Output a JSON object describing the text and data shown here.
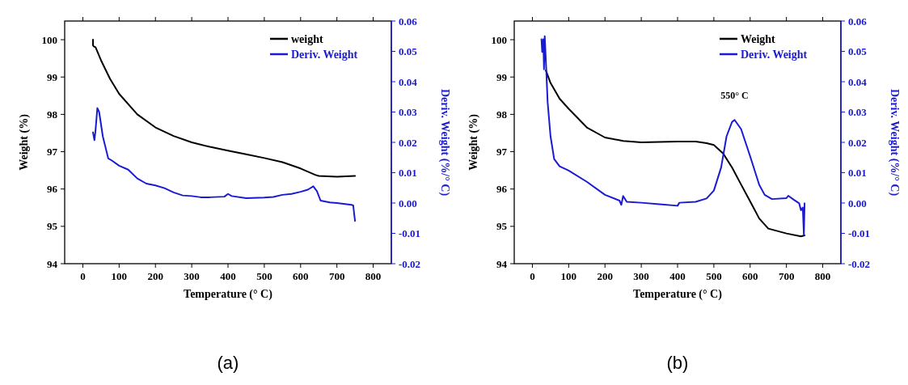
{
  "chart_data": [
    {
      "type": "line",
      "xlabel": "Temperature (° C)",
      "ylabel": "Weight (%)",
      "y2label": "Deriv. Weight (%/° C)",
      "xlim": [
        -50,
        850
      ],
      "xticks": [
        0,
        100,
        200,
        300,
        400,
        500,
        600,
        700,
        800
      ],
      "ylim": [
        94,
        100.5
      ],
      "yticks": [
        94,
        95,
        96,
        97,
        98,
        99,
        100
      ],
      "y2lim": [
        -0.02,
        0.06
      ],
      "y2ticks": [
        -0.02,
        -0.01,
        {
          "value": 0,
          "label": "0.00"
        },
        0.01,
        0.02,
        0.03,
        0.04,
        0.05,
        0.06
      ],
      "legend": "top right",
      "grid": false,
      "annotations": [
        "(a)"
      ],
      "series": [
        {
          "name": "weight",
          "color": "#000000",
          "x": [
            28,
            28,
            30,
            35,
            50,
            75,
            100,
            150,
            200,
            250,
            300,
            350,
            400,
            450,
            500,
            550,
            600,
            640,
            650,
            700,
            750
          ],
          "values": [
            100.0,
            99.85,
            99.82,
            99.8,
            99.45,
            98.95,
            98.55,
            98.0,
            97.65,
            97.42,
            97.25,
            97.13,
            97.03,
            96.93,
            96.83,
            96.72,
            96.55,
            96.38,
            96.35,
            96.33,
            96.35
          ]
        },
        {
          "name": "Deriv. Weight",
          "color": "#1a1ad2",
          "axis": "y2",
          "x": [
            28,
            30,
            32,
            35,
            40,
            45,
            55,
            70,
            80,
            100,
            125,
            150,
            175,
            200,
            225,
            250,
            275,
            300,
            325,
            350,
            390,
            400,
            410,
            450,
            500,
            525,
            550,
            575,
            600,
            620,
            635,
            645,
            655,
            680,
            700,
            740,
            745,
            748,
            750
          ],
          "values": [
            0.0233,
            0.022,
            0.0207,
            0.024,
            0.0313,
            0.03,
            0.022,
            0.0147,
            0.014,
            0.0123,
            0.011,
            0.0081,
            0.0064,
            0.0058,
            0.0049,
            0.0035,
            0.0025,
            0.0023,
            0.0019,
            0.0019,
            0.0021,
            0.003,
            0.0023,
            0.0016,
            0.0018,
            0.002,
            0.0027,
            0.003,
            0.0037,
            0.0044,
            0.0055,
            0.0039,
            0.0008,
            0.0002,
            0.0,
            -0.0006,
            -0.0008,
            -0.004,
            -0.0059
          ]
        }
      ]
    },
    {
      "type": "line",
      "xlabel": "Temperature (° C)",
      "ylabel": "Weight (%)",
      "y2label": "Deriv. Weight (%/° C)",
      "xlim": [
        -50,
        850
      ],
      "xticks": [
        0,
        100,
        200,
        300,
        400,
        500,
        600,
        700,
        800
      ],
      "ylim": [
        94,
        100.5
      ],
      "yticks": [
        94,
        95,
        96,
        97,
        98,
        99,
        100
      ],
      "y2lim": [
        -0.02,
        0.06
      ],
      "y2ticks": [
        -0.02,
        -0.01,
        {
          "value": 0,
          "label": "0.00"
        },
        0.01,
        0.02,
        0.03,
        0.04,
        0.05,
        0.06
      ],
      "legend": "top right",
      "grid": false,
      "annotations": [
        {
          "text": "550° C",
          "x": 557,
          "y": 97.85
        },
        "(b)"
      ],
      "series": [
        {
          "name": "Weight",
          "color": "#000000",
          "x": [
            37,
            50,
            75,
            100,
            150,
            200,
            250,
            300,
            400,
            450,
            480,
            500,
            525,
            550,
            575,
            600,
            625,
            650,
            700,
            740,
            750
          ],
          "values": [
            99.18,
            98.84,
            98.42,
            98.15,
            97.65,
            97.38,
            97.29,
            97.25,
            97.27,
            97.27,
            97.23,
            97.18,
            96.96,
            96.58,
            96.12,
            95.67,
            95.21,
            94.94,
            94.81,
            94.73,
            94.76
          ]
        },
        {
          "name": "Deriv. Weight",
          "color": "#1a1ad2",
          "axis": "y2",
          "x": [
            25,
            27,
            30,
            32,
            34,
            36,
            38,
            42,
            50,
            60,
            75,
            100,
            150,
            200,
            240,
            245,
            250,
            260,
            300,
            350,
            400,
            405,
            450,
            480,
            500,
            520,
            535,
            550,
            557,
            575,
            600,
            625,
            640,
            660,
            700,
            705,
            720,
            735,
            740,
            745,
            748,
            750
          ],
          "values": [
            0.054,
            0.0498,
            0.054,
            0.0441,
            0.055,
            0.05,
            0.0446,
            0.0333,
            0.022,
            0.0145,
            0.0121,
            0.0107,
            0.007,
            0.0027,
            0.0008,
            -0.0006,
            0.0023,
            0.0004,
            0.0001,
            -0.0004,
            -0.0009,
            0.0001,
            0.0004,
            0.0015,
            0.0041,
            0.0117,
            0.022,
            0.0267,
            0.0274,
            0.0244,
            0.0154,
            0.006,
            0.0027,
            0.0013,
            0.0016,
            0.0024,
            0.0011,
            -0.0001,
            -0.0024,
            -0.0015,
            -0.0104,
            -0.0001
          ]
        }
      ]
    }
  ]
}
